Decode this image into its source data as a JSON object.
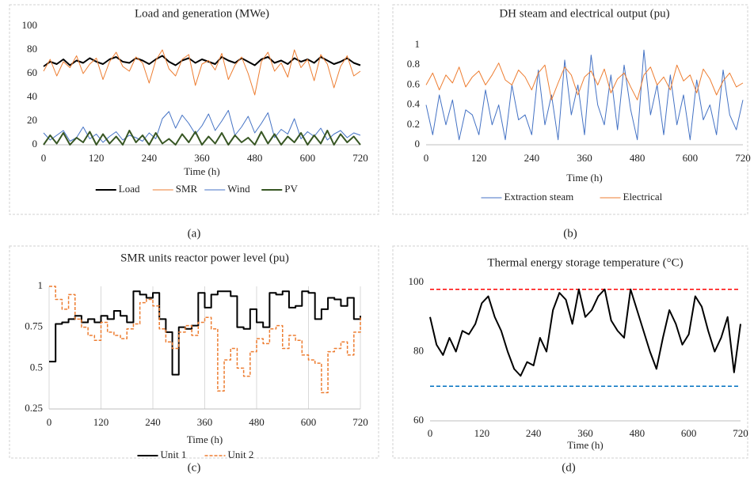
{
  "chart_data": [
    {
      "type": "line",
      "title": "Load and generation (MWe)",
      "xlabel": "Time (h)",
      "caption": "(a)",
      "x": [
        0,
        15,
        30,
        45,
        60,
        75,
        90,
        105,
        120,
        135,
        150,
        165,
        180,
        195,
        210,
        225,
        240,
        255,
        270,
        285,
        300,
        315,
        330,
        345,
        360,
        375,
        390,
        405,
        420,
        435,
        450,
        465,
        480,
        495,
        510,
        525,
        540,
        555,
        570,
        585,
        600,
        615,
        630,
        645,
        660,
        675,
        690,
        705,
        720
      ],
      "xlim": [
        0,
        720
      ],
      "xticks": [
        0,
        120,
        240,
        360,
        480,
        600,
        720
      ],
      "ylim": [
        0,
        100
      ],
      "yticks": [
        0,
        20,
        40,
        60,
        80,
        100
      ],
      "series": [
        {
          "name": "Load",
          "color": "#000000",
          "width": 2,
          "values": [
            66,
            70,
            68,
            72,
            67,
            71,
            69,
            73,
            70,
            68,
            72,
            74,
            70,
            69,
            73,
            71,
            68,
            72,
            75,
            70,
            67,
            71,
            73,
            69,
            72,
            70,
            68,
            74,
            71,
            69,
            73,
            70,
            67,
            72,
            74,
            69,
            71,
            68,
            73,
            70,
            72,
            69,
            74,
            71,
            68,
            70,
            73,
            69,
            67
          ]
        },
        {
          "name": "SMR",
          "color": "#ed7d31",
          "width": 1,
          "values": [
            62,
            72,
            58,
            70,
            65,
            75,
            60,
            68,
            73,
            55,
            70,
            78,
            66,
            62,
            74,
            69,
            52,
            71,
            80,
            64,
            58,
            72,
            76,
            50,
            68,
            71,
            63,
            77,
            55,
            67,
            74,
            60,
            42,
            70,
            78,
            62,
            69,
            57,
            80,
            65,
            72,
            54,
            76,
            68,
            48,
            66,
            75,
            58,
            62
          ]
        },
        {
          "name": "Wind",
          "color": "#4472c4",
          "width": 1,
          "values": [
            10,
            4,
            8,
            12,
            3,
            6,
            15,
            5,
            9,
            2,
            7,
            11,
            4,
            8,
            6,
            3,
            10,
            5,
            22,
            28,
            14,
            25,
            18,
            9,
            16,
            26,
            12,
            20,
            29,
            8,
            15,
            24,
            10,
            18,
            27,
            6,
            13,
            9,
            22,
            5,
            11,
            7,
            14,
            4,
            9,
            12,
            6,
            10,
            8
          ]
        },
        {
          "name": "PV",
          "color": "#375623",
          "width": 2,
          "values": [
            0,
            8,
            1,
            10,
            0,
            6,
            2,
            11,
            0,
            9,
            1,
            7,
            0,
            12,
            2,
            8,
            0,
            10,
            1,
            5,
            0,
            9,
            2,
            11,
            0,
            7,
            1,
            10,
            0,
            8,
            2,
            6,
            0,
            11,
            1,
            9,
            0,
            7,
            2,
            10,
            0,
            8,
            1,
            12,
            0,
            9,
            2,
            7,
            0
          ]
        }
      ]
    },
    {
      "type": "line",
      "title": "DH steam and electrical output (pu)",
      "xlabel": "Time (h)",
      "caption": "(b)",
      "x": [
        0,
        15,
        30,
        45,
        60,
        75,
        90,
        105,
        120,
        135,
        150,
        165,
        180,
        195,
        210,
        225,
        240,
        255,
        270,
        285,
        300,
        315,
        330,
        345,
        360,
        375,
        390,
        405,
        420,
        435,
        450,
        465,
        480,
        495,
        510,
        525,
        540,
        555,
        570,
        585,
        600,
        615,
        630,
        645,
        660,
        675,
        690,
        705,
        720
      ],
      "xlim": [
        0,
        720
      ],
      "xticks": [
        0,
        120,
        240,
        360,
        480,
        600,
        720
      ],
      "ylim": [
        0,
        1
      ],
      "yticks": [
        0,
        0.2,
        0.4,
        0.6,
        0.8,
        1
      ],
      "series": [
        {
          "name": "Extraction steam",
          "color": "#4472c4",
          "width": 1,
          "values": [
            0.4,
            0.1,
            0.5,
            0.2,
            0.45,
            0.05,
            0.35,
            0.3,
            0.1,
            0.55,
            0.2,
            0.4,
            0.05,
            0.6,
            0.25,
            0.3,
            0.1,
            0.75,
            0.2,
            0.5,
            0.05,
            0.85,
            0.3,
            0.6,
            0.1,
            0.9,
            0.4,
            0.2,
            0.7,
            0.15,
            0.8,
            0.35,
            0.05,
            0.95,
            0.3,
            0.6,
            0.1,
            0.7,
            0.2,
            0.5,
            0.05,
            0.65,
            0.25,
            0.4,
            0.1,
            0.75,
            0.3,
            0.15,
            0.45
          ]
        },
        {
          "name": "Electrical",
          "color": "#ed7d31",
          "width": 1,
          "values": [
            0.6,
            0.72,
            0.55,
            0.7,
            0.62,
            0.78,
            0.58,
            0.68,
            0.74,
            0.6,
            0.7,
            0.82,
            0.65,
            0.6,
            0.75,
            0.68,
            0.55,
            0.72,
            0.8,
            0.45,
            0.62,
            0.78,
            0.7,
            0.5,
            0.68,
            0.74,
            0.6,
            0.76,
            0.52,
            0.66,
            0.72,
            0.58,
            0.45,
            0.7,
            0.78,
            0.6,
            0.68,
            0.55,
            0.8,
            0.64,
            0.7,
            0.52,
            0.76,
            0.66,
            0.5,
            0.64,
            0.72,
            0.58,
            0.62
          ]
        }
      ]
    },
    {
      "type": "line",
      "title": "SMR units reactor power level (pu)",
      "xlabel": "Time (h)",
      "caption": "(c)",
      "xgrid": true,
      "x": [
        0,
        15,
        30,
        45,
        60,
        75,
        90,
        105,
        120,
        135,
        150,
        165,
        180,
        195,
        210,
        225,
        240,
        255,
        270,
        285,
        300,
        315,
        330,
        345,
        360,
        375,
        390,
        405,
        420,
        435,
        450,
        465,
        480,
        495,
        510,
        525,
        540,
        555,
        570,
        585,
        600,
        615,
        630,
        645,
        660,
        675,
        690,
        705,
        720
      ],
      "xlim": [
        0,
        720
      ],
      "xticks": [
        0,
        120,
        240,
        360,
        480,
        600,
        720
      ],
      "ylim": [
        0.25,
        1
      ],
      "yticks": [
        0.25,
        0.5,
        0.75,
        1
      ],
      "series": [
        {
          "name": "Unit 1",
          "color": "#000000",
          "width": 2,
          "step": true,
          "values": [
            0.54,
            0.77,
            0.78,
            0.8,
            0.82,
            0.78,
            0.8,
            0.78,
            0.82,
            0.8,
            0.85,
            0.82,
            0.78,
            0.97,
            0.95,
            0.93,
            0.96,
            0.8,
            0.72,
            0.46,
            0.75,
            0.74,
            0.76,
            0.96,
            0.87,
            0.95,
            0.97,
            0.97,
            0.94,
            0.75,
            0.74,
            0.86,
            0.78,
            0.75,
            0.96,
            0.95,
            0.97,
            0.87,
            0.88,
            0.97,
            0.96,
            0.8,
            0.86,
            0.93,
            0.92,
            0.88,
            0.93,
            0.8,
            0.82
          ]
        },
        {
          "name": "Unit 2",
          "color": "#ed7d31",
          "width": 1.5,
          "step": true,
          "dash": true,
          "values": [
            1,
            0.92,
            0.86,
            0.95,
            0.8,
            0.75,
            0.7,
            0.67,
            0.78,
            0.72,
            0.7,
            0.68,
            0.74,
            0.77,
            0.9,
            0.92,
            0.88,
            0.74,
            0.66,
            0.62,
            0.72,
            0.76,
            0.7,
            0.78,
            0.81,
            0.74,
            0.36,
            0.55,
            0.62,
            0.5,
            0.45,
            0.6,
            0.68,
            0.65,
            0.74,
            0.76,
            0.62,
            0.7,
            0.67,
            0.58,
            0.55,
            0.53,
            0.35,
            0.6,
            0.62,
            0.66,
            0.58,
            0.72,
            0.81
          ]
        }
      ]
    },
    {
      "type": "line",
      "title": "Thermal energy storage temperature (°C)",
      "xlabel": "Time (h)",
      "caption": "(d)",
      "x": [
        0,
        15,
        30,
        45,
        60,
        75,
        90,
        105,
        120,
        135,
        150,
        165,
        180,
        195,
        210,
        225,
        240,
        255,
        270,
        285,
        300,
        315,
        330,
        345,
        360,
        375,
        390,
        405,
        420,
        435,
        450,
        465,
        480,
        495,
        510,
        525,
        540,
        555,
        570,
        585,
        600,
        615,
        630,
        645,
        660,
        675,
        690,
        705,
        720
      ],
      "xlim": [
        0,
        720
      ],
      "xticks": [
        0,
        120,
        240,
        360,
        480,
        600,
        720
      ],
      "ylim": [
        60,
        100
      ],
      "yticks": [
        60,
        80,
        100
      ],
      "hlines": [
        {
          "value": 98,
          "color": "#ff0000"
        },
        {
          "value": 70,
          "color": "#0070c0"
        }
      ],
      "series": [
        {
          "color": "#000000",
          "width": 2,
          "values": [
            90,
            82,
            79,
            84,
            80,
            86,
            85,
            88,
            94,
            96,
            90,
            86,
            80,
            75,
            73,
            77,
            76,
            84,
            80,
            92,
            97,
            95,
            88,
            98,
            90,
            92,
            96,
            98,
            89,
            86,
            84,
            98,
            92,
            86,
            80,
            75,
            84,
            92,
            88,
            82,
            85,
            96,
            93,
            86,
            80,
            84,
            90,
            74,
            88
          ]
        }
      ]
    }
  ]
}
